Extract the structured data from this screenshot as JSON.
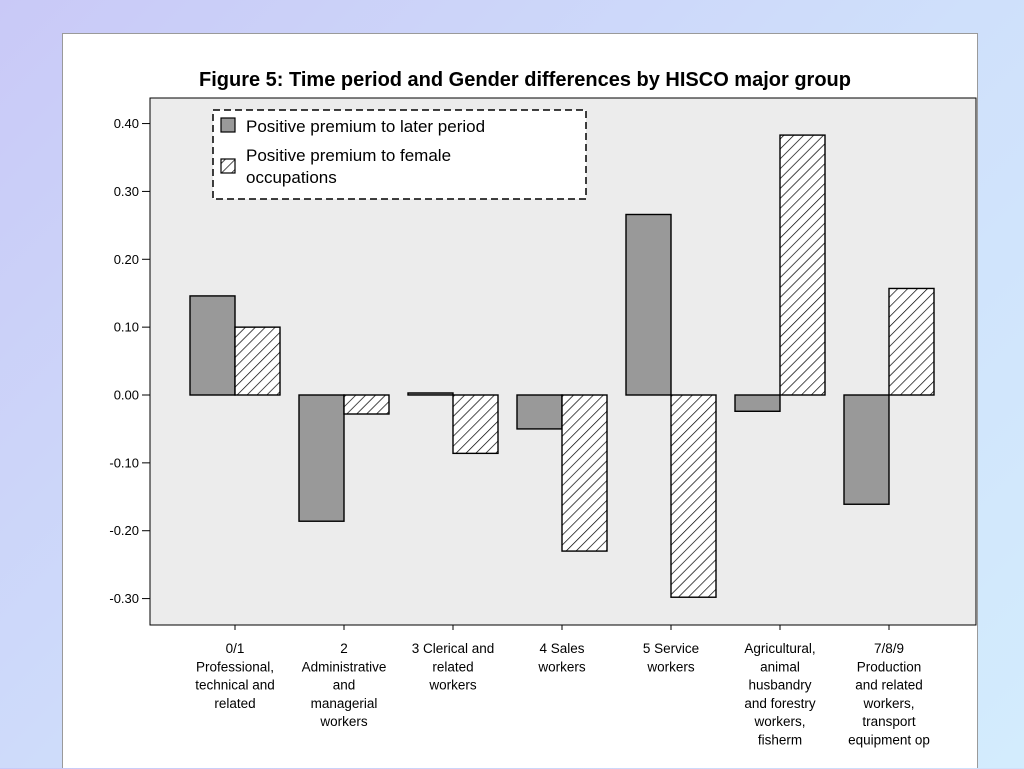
{
  "chart_data": {
    "type": "bar",
    "title": "Figure 5: Time period and Gender differences by HISCO major group",
    "xlabel": "",
    "ylabel": "",
    "ylim": [
      -0.34,
      0.44
    ],
    "y_ticks": [
      "0.40",
      "0.30",
      "0.20",
      "0.10",
      "0.00",
      "-0.10",
      "-0.20",
      "-0.30"
    ],
    "y_tick_values": [
      0.4,
      0.3,
      0.2,
      0.1,
      0.0,
      -0.1,
      -0.2,
      -0.3
    ],
    "categories": [
      [
        "0/1",
        "Professional,",
        "technical and",
        "related"
      ],
      [
        "2",
        "Administrative",
        "and",
        "managerial",
        "workers"
      ],
      [
        "3 Clerical and",
        "related",
        "workers"
      ],
      [
        "4 Sales",
        "workers"
      ],
      [
        "5 Service",
        "workers"
      ],
      [
        "Agricultural,",
        "animal",
        "husbandry",
        "and forestry",
        "workers,",
        "fisherm"
      ],
      [
        "7/8/9",
        "Production",
        "and related",
        "workers,",
        "transport",
        "equipment op"
      ]
    ],
    "series": [
      {
        "name": "Positive premium to later period",
        "pattern": "solid",
        "color": "#999999",
        "values": [
          0.146,
          -0.186,
          0.003,
          -0.05,
          0.266,
          -0.024,
          -0.161
        ]
      },
      {
        "name": "Positive premium to female occupations",
        "pattern": "hatch",
        "color": "#ffffff",
        "values": [
          0.1,
          -0.028,
          -0.086,
          -0.23,
          -0.298,
          0.383,
          0.157
        ]
      }
    ],
    "legend": {
      "position": "top-left",
      "lines": [
        [
          "Positive premium to later period"
        ],
        [
          "Positive premium to female",
          "occupations"
        ]
      ]
    },
    "grid": false,
    "plot_background": "#ececec"
  }
}
